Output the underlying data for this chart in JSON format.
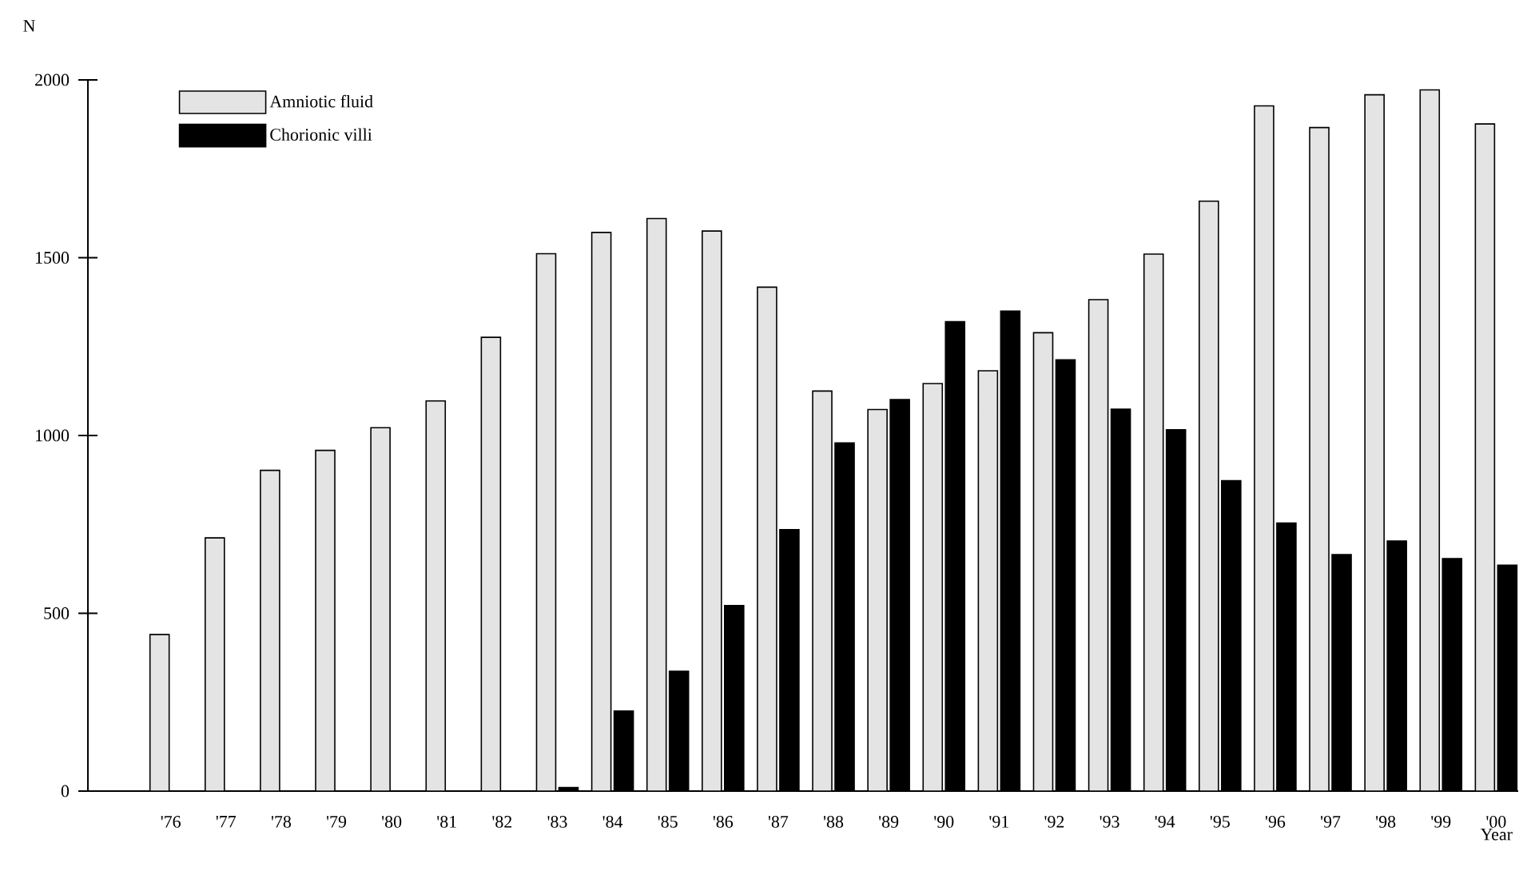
{
  "chart_data": {
    "type": "bar",
    "xlabel": "Year",
    "ylabel": "N",
    "categories": [
      "'76",
      "'77",
      "'78",
      "'79",
      "'80",
      "'81",
      "'82",
      "'83",
      "'84",
      "'85",
      "'86",
      "'87",
      "'88",
      "'89",
      "'90",
      "'91",
      "'92",
      "'93",
      "'94",
      "'95",
      "'96",
      "'97",
      "'98",
      "'99",
      "'00"
    ],
    "series": [
      {
        "name": "Amniotic fluid",
        "color": "#e4e4e4",
        "values": [
          440,
          712,
          902,
          958,
          1022,
          1097,
          1276,
          1511,
          1571,
          1610,
          1575,
          1417,
          1125,
          1073,
          1146,
          1182,
          1289,
          1382,
          1510,
          1659,
          1927,
          1866,
          1958,
          1972,
          1876
        ]
      },
      {
        "name": "Chorionic villi",
        "color": "#000000",
        "values": [
          null,
          null,
          null,
          null,
          null,
          null,
          null,
          10,
          225,
          337,
          522,
          735,
          979,
          1101,
          1320,
          1350,
          1213,
          1074,
          1016,
          873,
          754,
          665,
          703,
          654,
          635
        ]
      }
    ],
    "ylim": [
      0,
      2000
    ],
    "yticks": [
      0,
      500,
      1000,
      1500,
      2000
    ],
    "grid": false,
    "legend": "top left"
  }
}
